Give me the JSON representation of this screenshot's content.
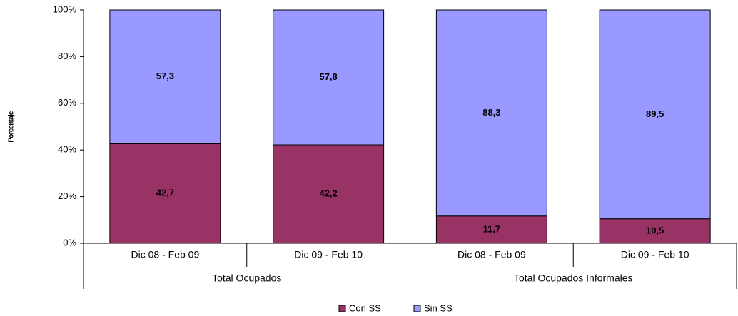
{
  "chart_data": {
    "type": "stacked_bar",
    "y_axis_label": "Porcentaje",
    "categories": [
      "Dic 08 - Feb 09",
      "Dic 09 - Feb 10",
      "Dic 08 - Feb 09",
      "Dic 09 - Feb 10"
    ],
    "group_labels": [
      "Total Ocupados",
      "Total Ocupados Informales"
    ],
    "series": [
      {
        "name": "Con SS",
        "color": "#993366",
        "values": [
          42.7,
          42.2,
          11.7,
          10.5
        ],
        "value_labels": [
          "42,7",
          "42,2",
          "11,7",
          "10,5"
        ]
      },
      {
        "name": "Sin SS",
        "color": "#9999ff",
        "values": [
          57.3,
          57.8,
          88.3,
          89.5
        ],
        "value_labels": [
          "57,3",
          "57,8",
          "88,3",
          "89,5"
        ]
      }
    ],
    "ylim": [
      0,
      100
    ],
    "yticks": [
      {
        "value": 0,
        "label": "0%"
      },
      {
        "value": 20,
        "label": "20%"
      },
      {
        "value": 40,
        "label": "40%"
      },
      {
        "value": 60,
        "label": "60%"
      },
      {
        "value": 80,
        "label": "80%"
      },
      {
        "value": 100,
        "label": "100%"
      }
    ],
    "legend": "bottom"
  }
}
